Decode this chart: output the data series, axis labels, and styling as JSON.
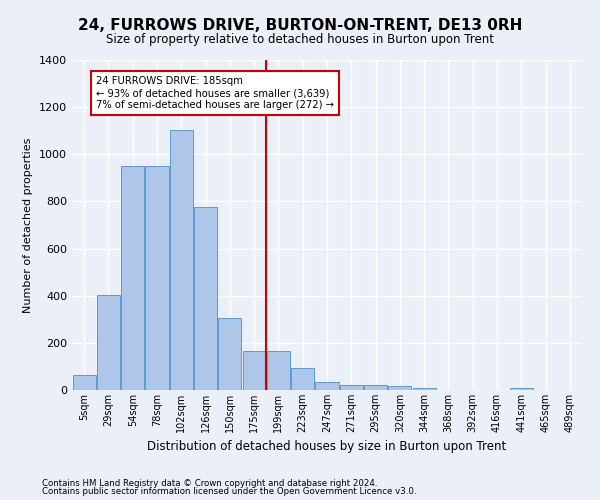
{
  "title": "24, FURROWS DRIVE, BURTON-ON-TRENT, DE13 0RH",
  "subtitle": "Size of property relative to detached houses in Burton upon Trent",
  "xlabel": "Distribution of detached houses by size in Burton upon Trent",
  "ylabel": "Number of detached properties",
  "bar_labels": [
    "5sqm",
    "29sqm",
    "54sqm",
    "78sqm",
    "102sqm",
    "126sqm",
    "150sqm",
    "175sqm",
    "199sqm",
    "223sqm",
    "247sqm",
    "271sqm",
    "295sqm",
    "320sqm",
    "344sqm",
    "368sqm",
    "392sqm",
    "416sqm",
    "441sqm",
    "465sqm",
    "489sqm"
  ],
  "bar_values": [
    65,
    405,
    950,
    950,
    1105,
    775,
    305,
    165,
    165,
    95,
    35,
    20,
    20,
    15,
    10,
    0,
    0,
    0,
    10,
    0,
    0
  ],
  "bar_color": "#aec6e8",
  "bar_edge_color": "#5b9bd5",
  "property_line_x": 7.5,
  "property_line_label": "24 FURROWS DRIVE: 185sqm",
  "annotation_smaller": "← 93% of detached houses are smaller (3,639)",
  "annotation_larger": "7% of semi-detached houses are larger (272) →",
  "annotation_box_color": "#ffffff",
  "annotation_box_edge": "#cc0000",
  "line_color": "#cc0000",
  "ylim": [
    0,
    1400
  ],
  "yticks": [
    0,
    200,
    400,
    600,
    800,
    1000,
    1200,
    1400
  ],
  "bg_color": "#eaeff8",
  "fig_bg_color": "#eaeff8",
  "grid_color": "#ffffff",
  "footer1": "Contains HM Land Registry data © Crown copyright and database right 2024.",
  "footer2": "Contains public sector information licensed under the Open Government Licence v3.0."
}
